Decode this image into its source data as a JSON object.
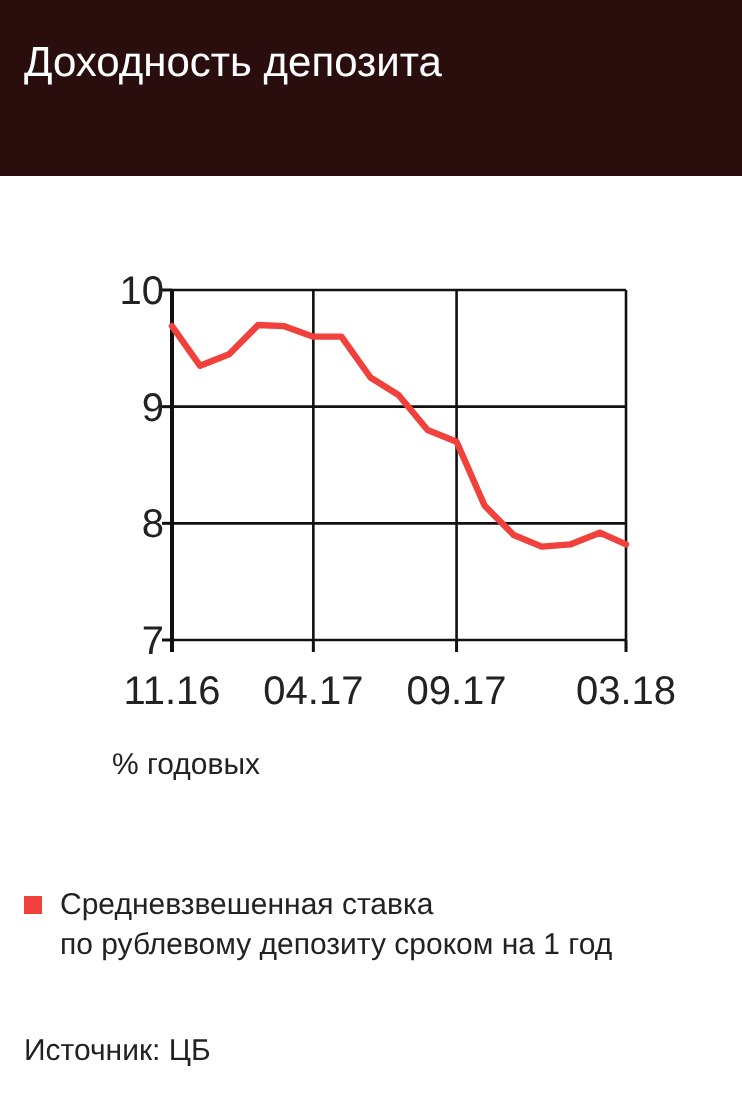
{
  "chart_data": {
    "type": "line",
    "title": "Доходность депозита",
    "ylabel": "% годовых",
    "x": [
      "2016-11",
      "2016-12",
      "2017-01",
      "2017-02",
      "2017-03",
      "2017-04",
      "2017-05",
      "2017-06",
      "2017-07",
      "2017-08",
      "2017-09",
      "2017-10",
      "2017-11",
      "2017-12",
      "2018-01",
      "2018-02",
      "2018-03"
    ],
    "xlim": [
      "2016-11",
      "2018-03"
    ],
    "xticks": [
      {
        "value": "2016-11",
        "label": "11.16"
      },
      {
        "value": "2017-04",
        "label": "04.17"
      },
      {
        "value": "2017-09",
        "label": "09.17"
      },
      {
        "value": "2018-03",
        "label": "03.18"
      }
    ],
    "ylim": [
      7,
      10
    ],
    "yticks": [
      7,
      8,
      9,
      10
    ],
    "grid": true,
    "legend": "bottom",
    "marker": "none",
    "line_style": "solid",
    "series": [
      {
        "name": "Средневзвешенная ставка по рублевому депозиту сроком на 1 год",
        "color": "#f0413c",
        "values": [
          9.69,
          9.35,
          9.45,
          9.7,
          9.69,
          9.6,
          9.6,
          9.25,
          9.1,
          8.8,
          8.7,
          8.15,
          7.9,
          7.8,
          7.82,
          7.92,
          7.82
        ]
      }
    ],
    "annotations": [
      "Источник: ЦБ"
    ]
  }
}
